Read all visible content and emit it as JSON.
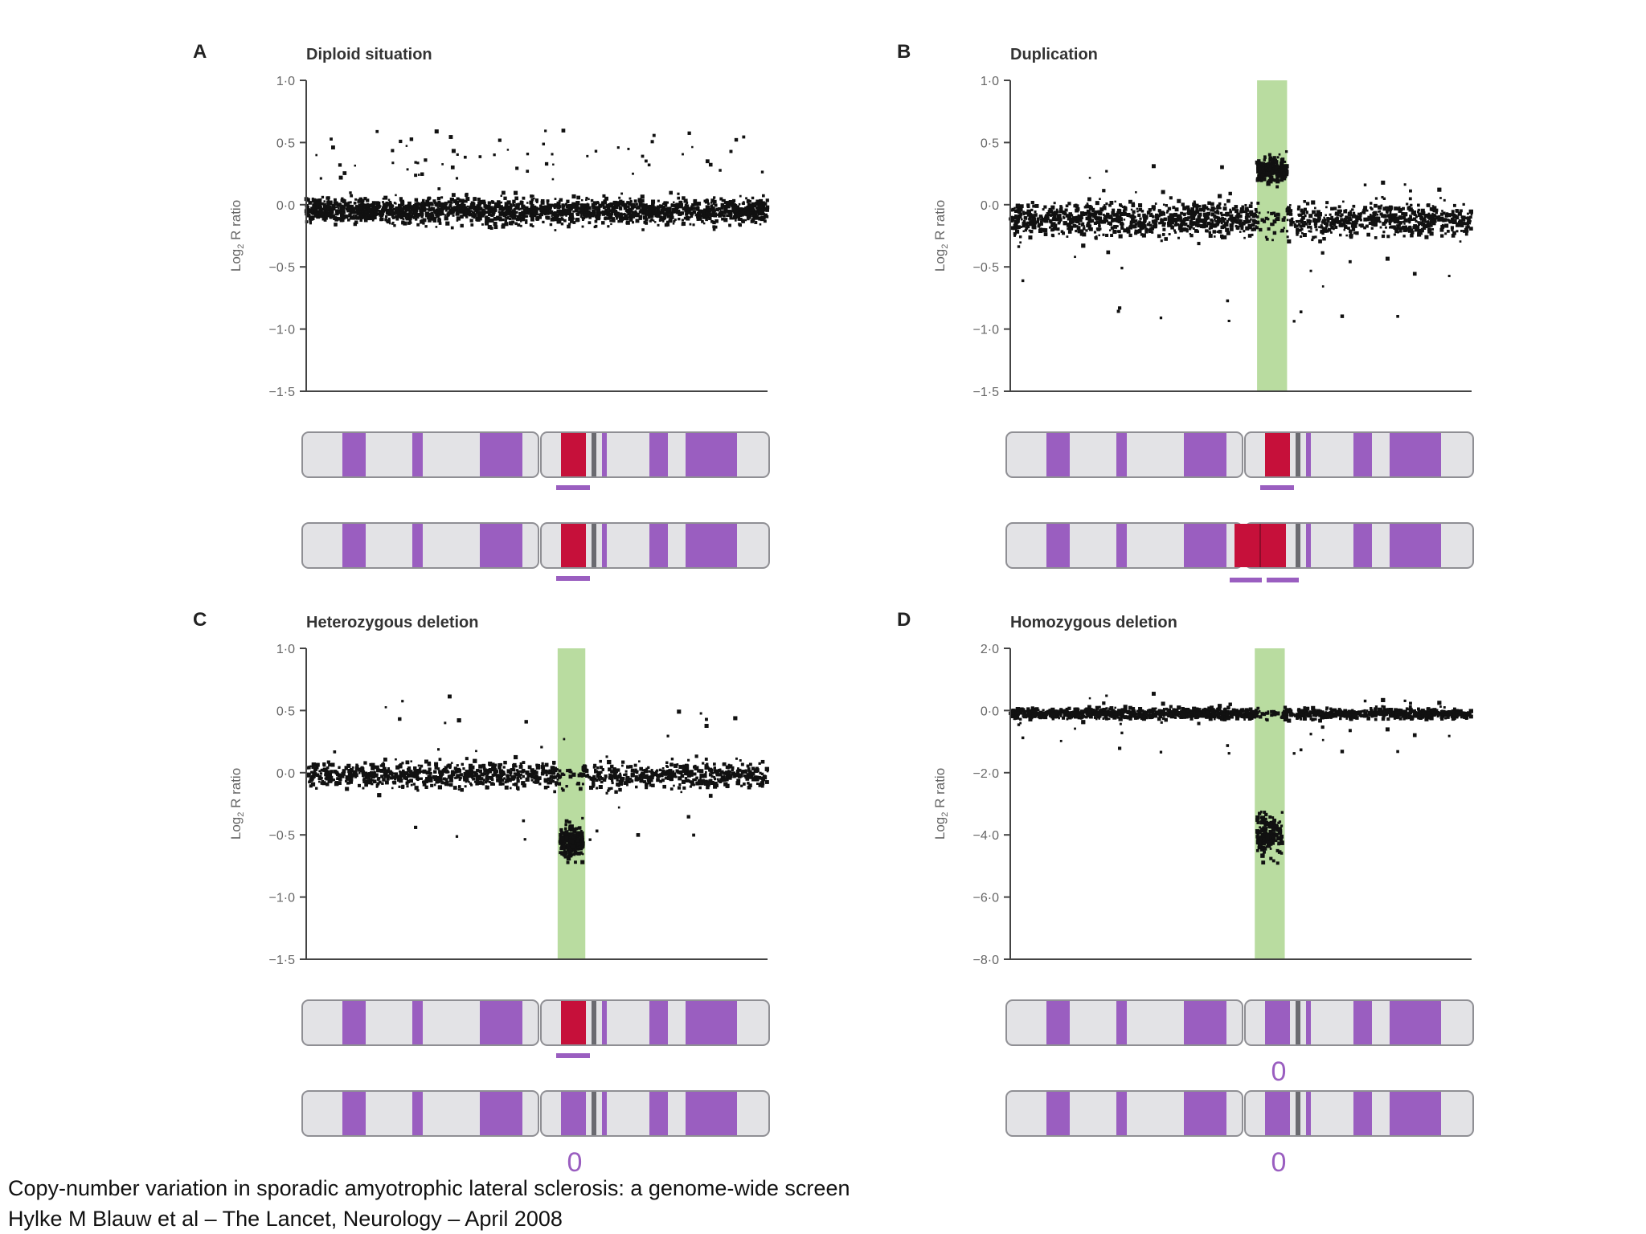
{
  "caption": {
    "line1": "Copy-number variation in sporadic amyotrophic lateral sclerosis: a genome-wide screen",
    "line2": "Hylke M Blauw et al – The Lancet, Neurology – April 2008"
  },
  "colors": {
    "points": "#111111",
    "highlight": "#b9dca0",
    "chrom_fill": "#e3e3e6",
    "chrom_border": "#8f8f94",
    "band": "#9a5ec0",
    "target": "#c6103a",
    "marker": "#9a5ec0",
    "axis_text": "#666666"
  },
  "chart_data": [
    {
      "id": "A",
      "type": "scatter",
      "panel_letter": "A",
      "title": "Diploid situation",
      "ylabel": "Log2 R ratio",
      "ylabel_base": "Log",
      "ylabel_sub": "2",
      "ylabel_rest": " R ratio",
      "ylim": [
        -1.5,
        1.0
      ],
      "yticks": [
        1.0,
        0.5,
        0.0,
        -0.5,
        -1.0,
        -1.5
      ],
      "ytick_labels": [
        "1·0",
        "0·5",
        "0·0",
        "−0·5",
        "−1·0",
        "−1·5"
      ],
      "xrange": [
        0,
        100
      ],
      "highlight": null,
      "baseline": {
        "center": -0.05,
        "spread": 0.13,
        "points": 2200,
        "outlier_min": 0.2,
        "outlier_max": 0.6
      },
      "region": null,
      "chromosomes": [
        {
          "target_copies": 1,
          "markers": 1,
          "zero_label": ""
        },
        {
          "target_copies": 1,
          "markers": 1,
          "zero_label": ""
        }
      ]
    },
    {
      "id": "B",
      "type": "scatter",
      "panel_letter": "B",
      "title": "Duplication",
      "ylabel": "Log2 R ratio",
      "ylabel_base": "Log",
      "ylabel_sub": "2",
      "ylabel_rest": " R ratio",
      "ylim": [
        -1.5,
        1.0
      ],
      "yticks": [
        1.0,
        0.5,
        0.0,
        -0.5,
        -1.0,
        -1.5
      ],
      "ytick_labels": [
        "1·0",
        "0·5",
        "0·0",
        "−0·5",
        "−1·0",
        "−1·5"
      ],
      "xrange": [
        0,
        100
      ],
      "highlight": [
        53.5,
        60.0
      ],
      "baseline": {
        "center": -0.12,
        "spread": 0.17,
        "points": 2200,
        "outlier_min": -0.95,
        "outlier_max": 0.35
      },
      "region": {
        "x": [
          53.5,
          60.0
        ],
        "center": 0.28,
        "spread": 0.12,
        "points": 220
      },
      "chromosomes": [
        {
          "target_copies": 1,
          "markers": 1,
          "zero_label": ""
        },
        {
          "target_copies": 2,
          "markers": 2,
          "zero_label": ""
        }
      ]
    },
    {
      "id": "C",
      "type": "scatter",
      "panel_letter": "C",
      "title": "Heterozygous deletion",
      "ylabel": "Log2 R ratio",
      "ylabel_base": "Log",
      "ylabel_sub": "2",
      "ylabel_rest": " R ratio",
      "ylim": [
        -1.5,
        1.0
      ],
      "yticks": [
        1.0,
        0.5,
        0.0,
        -0.5,
        -1.0,
        -1.5
      ],
      "ytick_labels": [
        "1·0",
        "0·5",
        "0·0",
        "−0·5",
        "−1·0",
        "−1·5"
      ],
      "xrange": [
        0,
        100
      ],
      "highlight": [
        54.5,
        60.5
      ],
      "baseline": {
        "center": -0.02,
        "spread": 0.13,
        "points": 2200,
        "outlier_min": -0.55,
        "outlier_max": 0.65
      },
      "region": {
        "x": [
          55.0,
          60.0
        ],
        "center": -0.55,
        "spread": 0.15,
        "points": 200
      },
      "chromosomes": [
        {
          "target_copies": 1,
          "markers": 1,
          "zero_label": ""
        },
        {
          "target_copies": 0,
          "markers": 0,
          "zero_label": "0"
        }
      ]
    },
    {
      "id": "D",
      "type": "scatter",
      "panel_letter": "D",
      "title": "Homozygous deletion",
      "ylabel": "Log2 R ratio",
      "ylabel_base": "Log",
      "ylabel_sub": "2",
      "ylabel_rest": " R ratio",
      "ylim": [
        -8.0,
        2.0
      ],
      "yticks": [
        2.0,
        0.0,
        -2.0,
        -4.0,
        -6.0,
        -8.0
      ],
      "ytick_labels": [
        "2·0",
        "0·0",
        "−2·0",
        "−4·0",
        "−6·0",
        "−8·0"
      ],
      "xrange": [
        0,
        100
      ],
      "highlight": [
        53.0,
        59.5
      ],
      "baseline": {
        "center": -0.1,
        "spread": 0.22,
        "points": 2200,
        "outlier_min": -1.4,
        "outlier_max": 0.6
      },
      "region": {
        "x": [
          53.5,
          59.0
        ],
        "center": -4.0,
        "spread": 0.8,
        "points": 180
      },
      "chromosomes": [
        {
          "target_copies": 0,
          "markers": 0,
          "zero_label": "0"
        },
        {
          "target_copies": 0,
          "markers": 0,
          "zero_label": "0"
        }
      ]
    }
  ]
}
